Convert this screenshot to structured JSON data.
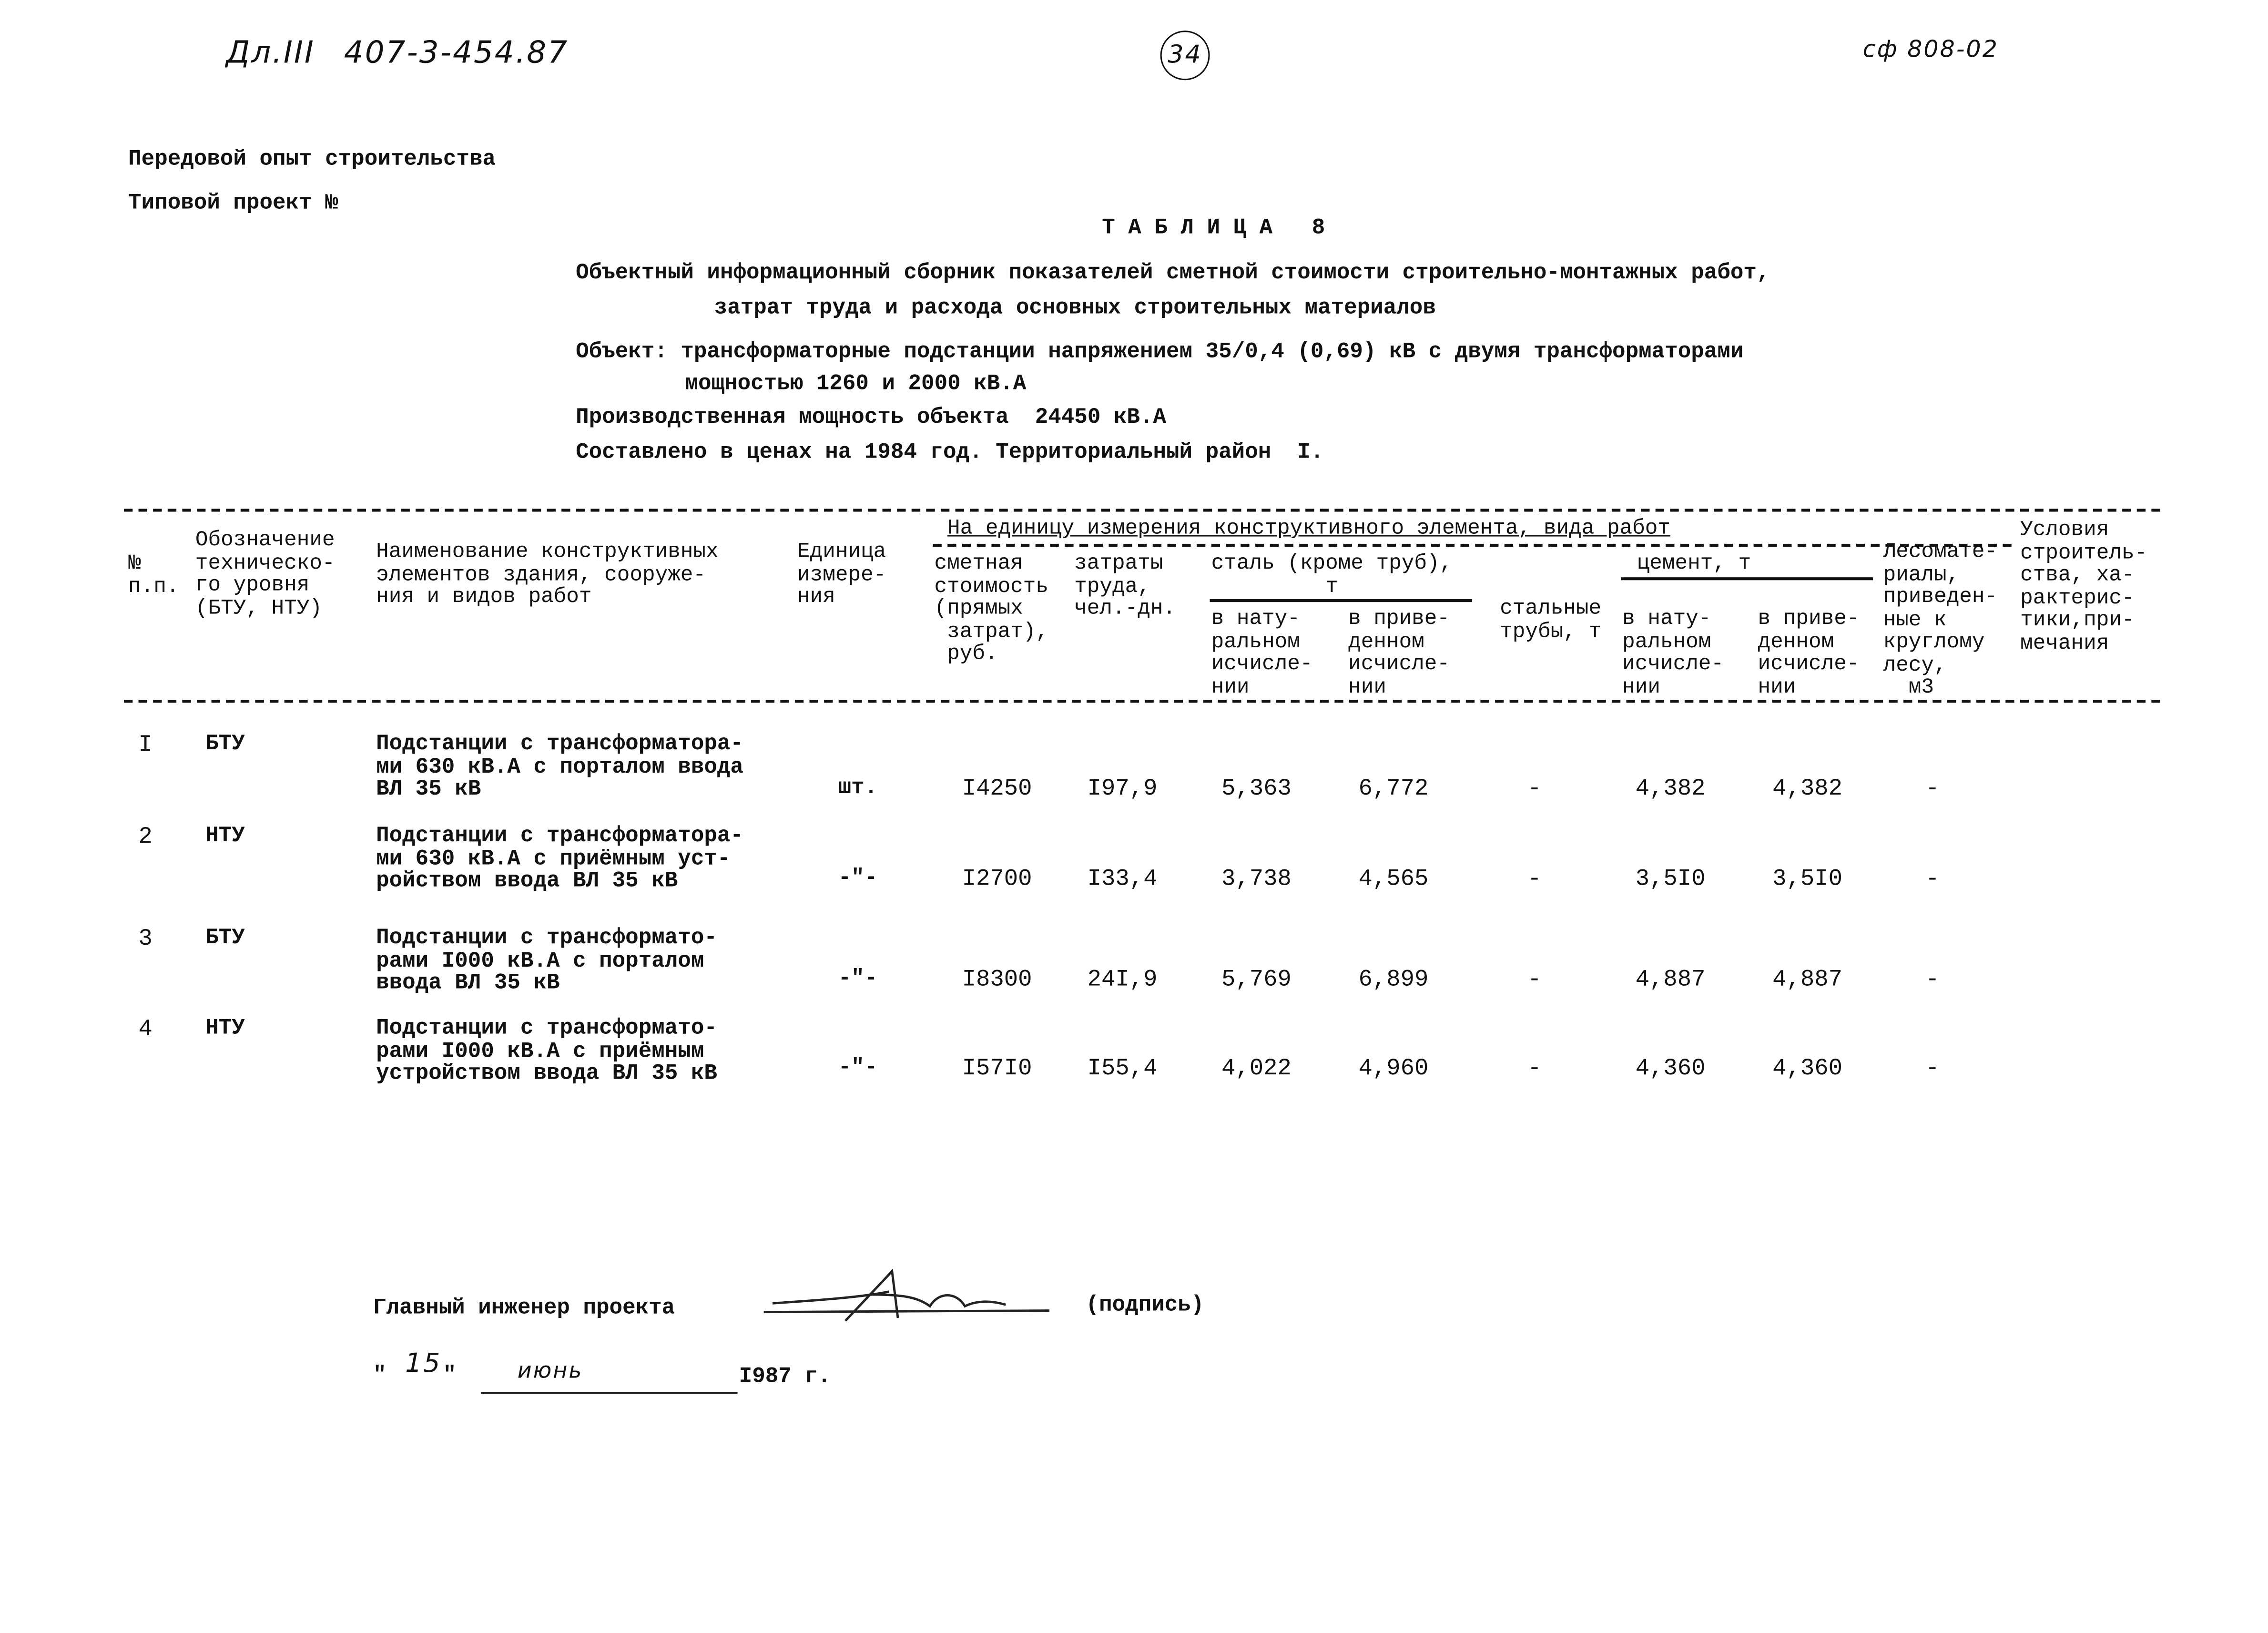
{
  "header": {
    "sheet_mark": "Дл.III",
    "project_code": "407-3-454.87",
    "page_number": "34",
    "form_code": "сф 808-02",
    "line1": "Передовой опыт строительства",
    "line2": "Типовой проект №"
  },
  "title": {
    "table_label": "Т А Б Л И Ц А   8",
    "caption_1": "Объектный информационный сборник показателей сметной стоимости строительно-монтажных работ,",
    "caption_2": "затрат труда и расхода основных строительных материалов",
    "object_1": "Объект: трансформаторные подстанции напряжением 35/0,4 (0,69) кВ с двумя трансформаторами",
    "object_2": "мощностью 1260 и 2000 кВ.А",
    "capacity": "Производственная мощность объекта  24450 кВ.А",
    "prices": "Составлено в ценах на 1984 год. Территориальный район  I."
  },
  "table": {
    "headers": {
      "num": "№\nп.п.",
      "level": "Обозначение\nтехническо-\nго уровня\n(БТУ, НТУ)",
      "name": "Наименование конструктивных\nэлементов здания, сооруже-\nния и видов работ",
      "unit": "Единица\nизмере-\nния",
      "group": "На единицу измерения конструктивного элемента, вида работ",
      "cost": "сметная\nстоимость\n(прямых\n затрат),\n руб.",
      "labor": "затраты\nтруда,\nчел.-дн.",
      "steel": "сталь (кроме труб),\n         т",
      "steel_nat": "в нату-\nральном\nисчисле-\nнии",
      "steel_red": "в приве-\nденном\nисчисле-\nнии",
      "pipes": "стальные\nтрубы, т",
      "cement": "цемент, т",
      "cement_nat": "в нату-\nральном\nисчисле-\nнии",
      "cement_red": "в приве-\nденном\nисчисле-\nнии",
      "timber": "Лесомате-\nриалы,\nприведен-\nные к\nкруглому\nлесу,\n  м3",
      "notes": "Условия\nстроитель-\nства, ха-\nрактерис-\nтики,при-\nмечания"
    },
    "rows": [
      {
        "num": "I",
        "level": "БТУ",
        "name": "Подстанции с трансформатора-\nми 630 кВ.А с порталом ввода\nВЛ 35 кВ",
        "unit": "шт.",
        "cost": "I4250",
        "labor": "I97,9",
        "steel_nat": "5,363",
        "steel_red": "6,772",
        "pipes": "-",
        "cement_nat": "4,382",
        "cement_red": "4,382",
        "timber": "-"
      },
      {
        "num": "2",
        "level": "НТУ",
        "name": "Подстанции с трансформатора-\nми 630 кВ.А с приёмным уст-\nройством ввода ВЛ 35 кВ",
        "unit": "-\"-",
        "cost": "I2700",
        "labor": "I33,4",
        "steel_nat": "3,738",
        "steel_red": "4,565",
        "pipes": "-",
        "cement_nat": "3,5I0",
        "cement_red": "3,5I0",
        "timber": "-"
      },
      {
        "num": "3",
        "level": "БТУ",
        "name": "Подстанции с трансформато-\nрами I000 кВ.А с порталом\nввода ВЛ 35 кВ",
        "unit": "-\"-",
        "cost": "I8300",
        "labor": "24I,9",
        "steel_nat": "5,769",
        "steel_red": "6,899",
        "pipes": "-",
        "cement_nat": "4,887",
        "cement_red": "4,887",
        "timber": "-"
      },
      {
        "num": "4",
        "level": "НТУ",
        "name": "Подстанции с трансформато-\nрами I000 кВ.А с приёмным\nустройством ввода ВЛ 35 кВ",
        "unit": "-\"-",
        "cost": "I57I0",
        "labor": "I55,4",
        "steel_nat": "4,022",
        "steel_red": "4,960",
        "pipes": "-",
        "cement_nat": "4,360",
        "cement_red": "4,360",
        "timber": "-"
      }
    ]
  },
  "footer": {
    "chief_engineer": "Главный инженер проекта",
    "signature_label": "(подпись)",
    "day": "15",
    "month": "июнь",
    "year": "I987 г."
  }
}
